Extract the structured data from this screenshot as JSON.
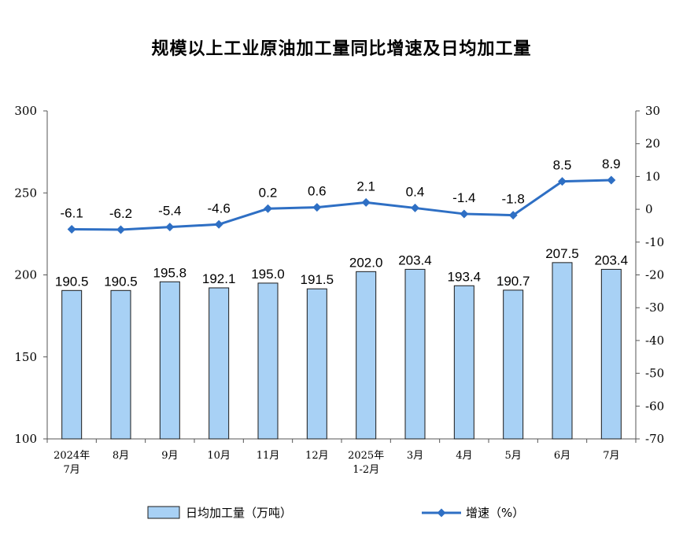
{
  "chart_data": {
    "type": "bar+line",
    "title": "规模以上工业原油加工量同比增速及日均加工量",
    "categories": [
      [
        "2024年",
        "7月"
      ],
      [
        "8月"
      ],
      [
        "9月"
      ],
      [
        "10月"
      ],
      [
        "11月"
      ],
      [
        "12月"
      ],
      [
        "2025年",
        "1-2月"
      ],
      [
        "3月"
      ],
      [
        "4月"
      ],
      [
        "5月"
      ],
      [
        "6月"
      ],
      [
        "7月"
      ]
    ],
    "series": [
      {
        "name": "日均加工量（万吨）",
        "type": "bar",
        "axis": "left",
        "color": "#a8d1f5",
        "values": [
          190.5,
          190.5,
          195.8,
          192.1,
          195.0,
          191.5,
          202.0,
          203.4,
          193.4,
          190.7,
          207.5,
          203.4
        ],
        "labels": [
          "190.5",
          "190.5",
          "195.8",
          "192.1",
          "195.0",
          "191.5",
          "202.0",
          "203.4",
          "193.4",
          "190.7",
          "207.5",
          "203.4"
        ]
      },
      {
        "name": "增速（%）",
        "type": "line",
        "axis": "right",
        "color": "#2e6fc4",
        "values": [
          -6.1,
          -6.2,
          -5.4,
          -4.6,
          0.2,
          0.6,
          2.1,
          0.4,
          -1.4,
          -1.8,
          8.5,
          8.9
        ],
        "labels": [
          "-6.1",
          "-6.2",
          "-5.4",
          "-4.6",
          "0.2",
          "0.6",
          "2.1",
          "0.4",
          "-1.4",
          "-1.8",
          "8.5",
          "8.9"
        ]
      }
    ],
    "y_left": {
      "min": 100,
      "max": 300,
      "ticks": [
        100,
        150,
        200,
        250,
        300
      ]
    },
    "y_right": {
      "min": -70,
      "max": 30,
      "ticks": [
        30,
        20,
        10,
        0,
        -10,
        -20,
        -30,
        -40,
        -50,
        -60,
        -70
      ]
    },
    "grid": false,
    "legend": "bottom"
  }
}
